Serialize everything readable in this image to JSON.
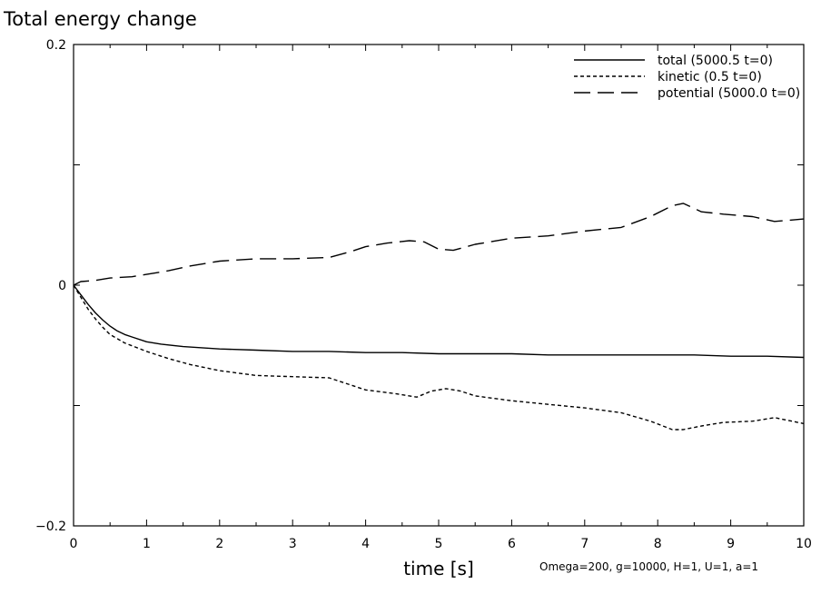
{
  "chart_data": {
    "type": "line",
    "title": "Total energy change",
    "xlabel": "time [s]",
    "ylabel": "",
    "xlim": [
      0,
      10
    ],
    "ylim": [
      -0.2,
      0.2
    ],
    "x_ticks": [
      "0",
      "1",
      "2",
      "3",
      "4",
      "5",
      "6",
      "7",
      "8",
      "9",
      "10"
    ],
    "y_ticks": [
      "0.2",
      "0",
      "−0.2"
    ],
    "annotation": "Omega=200, g=10000, H=1, U=1, a=1",
    "legend_position": "top-right",
    "grid": false,
    "series": [
      {
        "name": "total (5000.5 t=0)",
        "style": "solid",
        "x": [
          0,
          0.1,
          0.2,
          0.3,
          0.4,
          0.5,
          0.6,
          0.7,
          0.8,
          1,
          1.2,
          1.5,
          2,
          2.5,
          3,
          3.5,
          4,
          4.5,
          5,
          5.5,
          6,
          6.5,
          7,
          7.5,
          8,
          8.5,
          9,
          9.5,
          10
        ],
        "y": [
          0,
          -0.008,
          -0.016,
          -0.023,
          -0.029,
          -0.034,
          -0.038,
          -0.041,
          -0.043,
          -0.047,
          -0.049,
          -0.051,
          -0.053,
          -0.054,
          -0.055,
          -0.055,
          -0.056,
          -0.056,
          -0.057,
          -0.057,
          -0.057,
          -0.058,
          -0.058,
          -0.058,
          -0.058,
          -0.058,
          -0.059,
          -0.059,
          -0.06
        ]
      },
      {
        "name": "kinetic (0.5 t=0)",
        "style": "dashed",
        "x": [
          0,
          0.1,
          0.2,
          0.3,
          0.4,
          0.5,
          0.7,
          1,
          1.3,
          1.6,
          2,
          2.5,
          3,
          3.5,
          3.8,
          4,
          4.4,
          4.7,
          4.9,
          5.1,
          5.3,
          5.5,
          6,
          6.5,
          7,
          7.5,
          7.9,
          8.2,
          8.35,
          8.6,
          8.9,
          9.3,
          9.6,
          10
        ],
        "y": [
          0,
          -0.01,
          -0.02,
          -0.028,
          -0.035,
          -0.041,
          -0.048,
          -0.055,
          -0.061,
          -0.066,
          -0.071,
          -0.075,
          -0.076,
          -0.077,
          -0.083,
          -0.087,
          -0.09,
          -0.093,
          -0.088,
          -0.086,
          -0.088,
          -0.092,
          -0.096,
          -0.099,
          -0.102,
          -0.106,
          -0.113,
          -0.12,
          -0.12,
          -0.117,
          -0.114,
          -0.113,
          -0.11,
          -0.115
        ]
      },
      {
        "name": "potential (5000.0 t=0)",
        "style": "long-dashed",
        "x": [
          0,
          0.1,
          0.3,
          0.5,
          0.8,
          1,
          1.3,
          1.6,
          2,
          2.5,
          3,
          3.5,
          3.8,
          4,
          4.3,
          4.6,
          4.8,
          5,
          5.2,
          5.5,
          6,
          6.5,
          7,
          7.5,
          7.9,
          8.2,
          8.35,
          8.6,
          8.9,
          9.3,
          9.6,
          10
        ],
        "y": [
          0,
          0.003,
          0.004,
          0.006,
          0.007,
          0.009,
          0.012,
          0.016,
          0.02,
          0.022,
          0.022,
          0.023,
          0.028,
          0.032,
          0.035,
          0.037,
          0.036,
          0.03,
          0.029,
          0.034,
          0.039,
          0.041,
          0.045,
          0.048,
          0.057,
          0.066,
          0.068,
          0.061,
          0.059,
          0.057,
          0.053,
          0.055
        ]
      }
    ]
  }
}
